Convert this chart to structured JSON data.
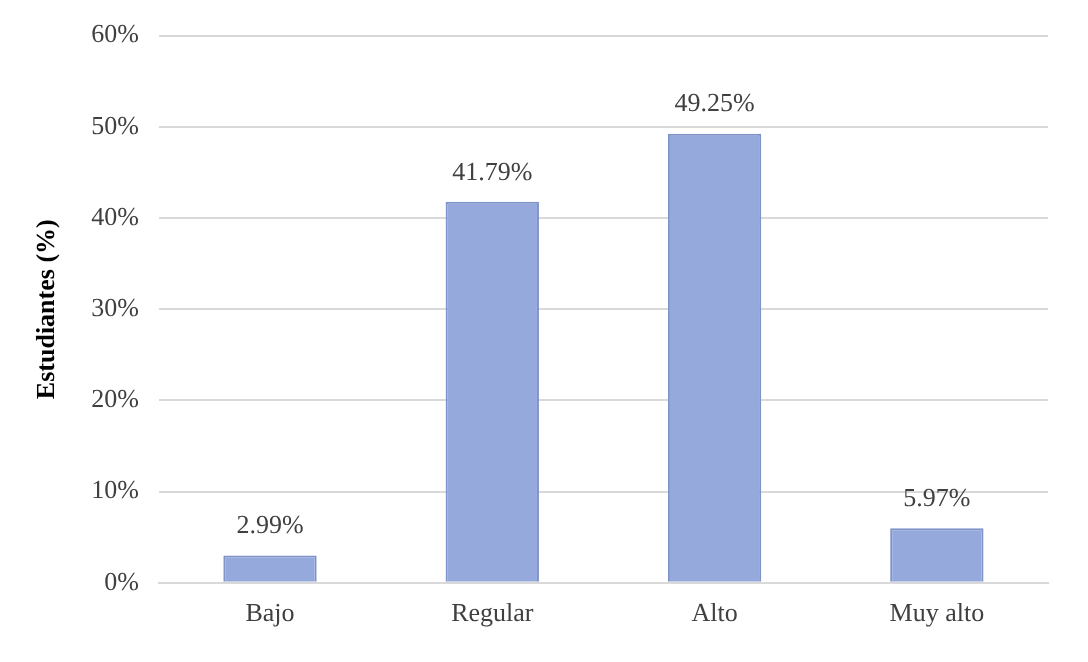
{
  "chart_data": {
    "type": "bar",
    "ylabel": "Estudiantes (%)",
    "categories": [
      "Bajo",
      "Regular",
      "Alto",
      "Muy alto"
    ],
    "values": [
      2.99,
      41.79,
      49.25,
      5.97
    ],
    "value_labels": [
      "2.99%",
      "41.79%",
      "49.25%",
      "5.97%"
    ],
    "color": "#95a9dd",
    "ylim": [
      0,
      60
    ],
    "yticks": [
      {
        "value": 0,
        "label": "0%"
      },
      {
        "value": 10,
        "label": "10%"
      },
      {
        "value": 20,
        "label": "20%"
      },
      {
        "value": 30,
        "label": "30%"
      },
      {
        "value": 40,
        "label": "40%"
      },
      {
        "value": 50,
        "label": "50%"
      },
      {
        "value": 60,
        "label": "60%"
      }
    ],
    "grid": "y",
    "legend": false
  }
}
